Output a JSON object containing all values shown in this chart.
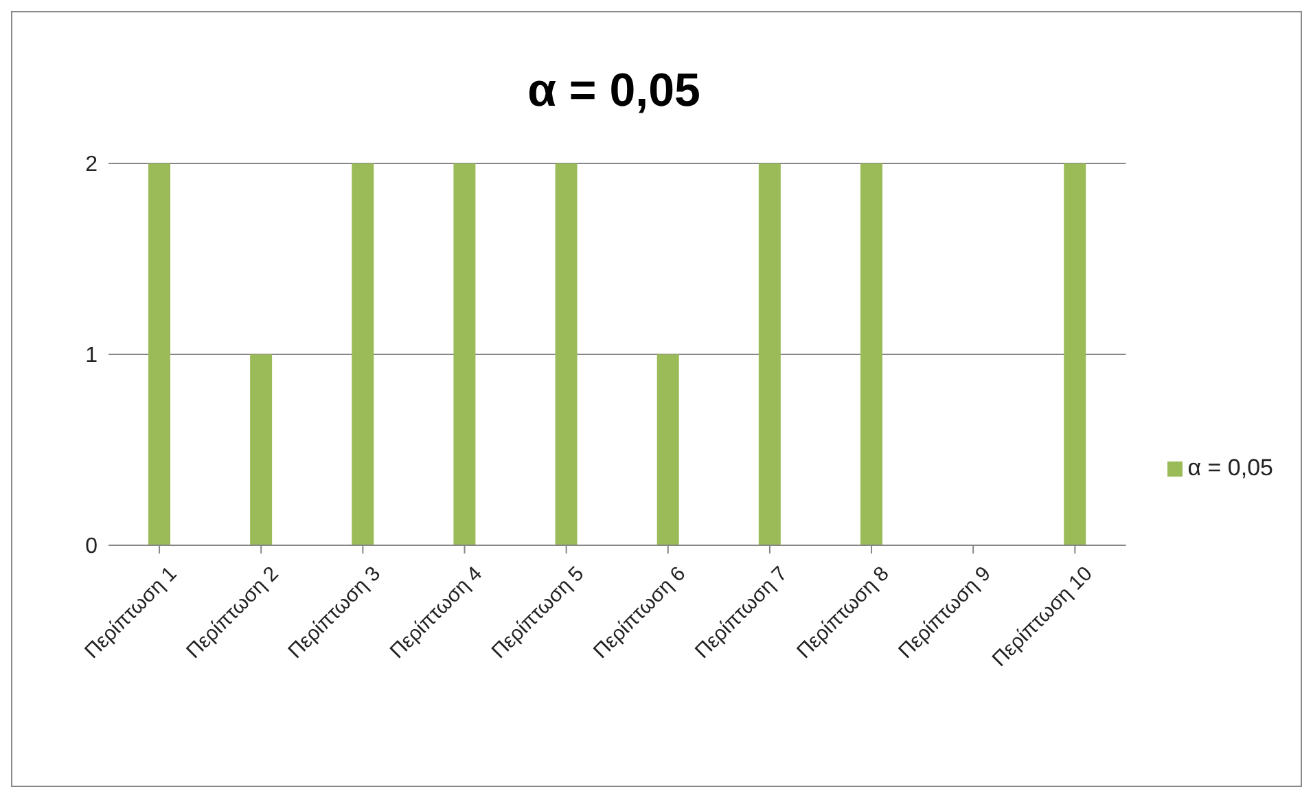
{
  "chart_data": {
    "type": "bar",
    "title": "α = 0,05",
    "categories": [
      "Περίπτωση 1",
      "Περίπτωση 2",
      "Περίπτωση 3",
      "Περίπτωση 4",
      "Περίπτωση 5",
      "Περίπτωση 6",
      "Περίπτωση 7",
      "Περίπτωση 8",
      "Περίπτωση 9",
      "Περίπτωση 10"
    ],
    "series": [
      {
        "name": "α = 0,05",
        "color": "#9bbb59",
        "values": [
          2,
          1,
          2,
          2,
          2,
          1,
          2,
          2,
          0,
          2
        ]
      }
    ],
    "ylim": [
      0,
      2
    ],
    "yticks": [
      0,
      1,
      2
    ],
    "grid": "y",
    "legend": "right"
  }
}
